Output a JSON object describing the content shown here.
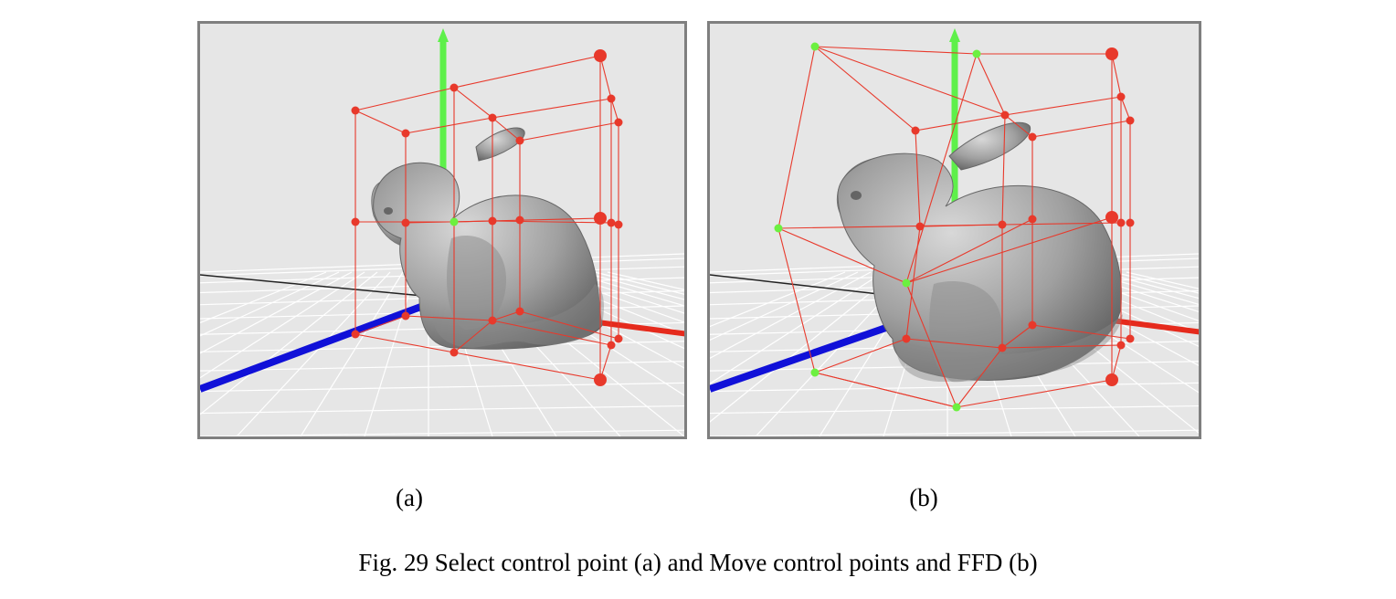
{
  "figure": {
    "caption": "Fig. 29 Select control point (a) and Move control points and FFD (b)",
    "panels": [
      {
        "id": "a",
        "label": "(a)"
      },
      {
        "id": "b",
        "label": "(b)"
      }
    ]
  },
  "colors": {
    "background": "#e6e6e6",
    "frame": "#7f7f7f",
    "lattice": "#e8392b",
    "selected_point": "#6cf040",
    "y_axis": "#5ef04a",
    "x_axis": "#e52a1c",
    "z_axis": "#1010d8",
    "bunny": "#a9a9a9"
  }
}
